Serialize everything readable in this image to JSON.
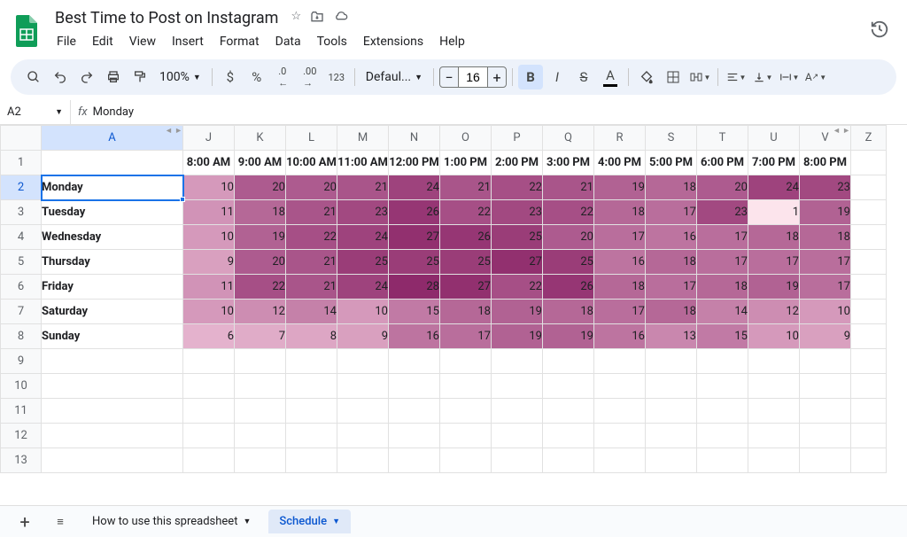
{
  "doc": {
    "title": "Best Time to Post on Instagram"
  },
  "menu": [
    "File",
    "Edit",
    "View",
    "Insert",
    "Format",
    "Data",
    "Tools",
    "Extensions",
    "Help"
  ],
  "toolbar": {
    "zoom": "100%",
    "font": "Defaul...",
    "fontSize": "16"
  },
  "namebox": {
    "cell": "A2",
    "formula": "Monday"
  },
  "columns": {
    "letters": [
      "A",
      "J",
      "K",
      "L",
      "M",
      "N",
      "O",
      "P",
      "Q",
      "R",
      "S",
      "T",
      "U",
      "V",
      "Z"
    ],
    "widths": [
      160,
      58,
      58,
      58,
      58,
      58,
      58,
      58,
      58,
      58,
      58,
      58,
      58,
      58,
      40
    ],
    "day_col_width": 160,
    "val_col_width": 58
  },
  "timeHeaders": [
    "8:00 AM",
    "9:00 AM",
    "10:00 AM",
    "11:00 AM",
    "12:00 PM",
    "1:00 PM",
    "2:00 PM",
    "3:00 PM",
    "4:00 PM",
    "5:00 PM",
    "6:00 PM",
    "7:00 PM",
    "8:00 PM"
  ],
  "days": [
    "Monday",
    "Tuesday",
    "Wednesday",
    "Thursday",
    "Friday",
    "Saturday",
    "Sunday"
  ],
  "heatmap": {
    "values": [
      [
        10,
        20,
        20,
        21,
        24,
        21,
        22,
        21,
        19,
        18,
        20,
        24,
        23
      ],
      [
        11,
        18,
        21,
        23,
        26,
        22,
        23,
        22,
        18,
        17,
        23,
        1,
        19
      ],
      [
        10,
        19,
        22,
        24,
        27,
        26,
        25,
        20,
        17,
        16,
        17,
        18,
        18
      ],
      [
        9,
        20,
        21,
        25,
        25,
        25,
        27,
        25,
        16,
        18,
        17,
        17,
        17
      ],
      [
        11,
        22,
        21,
        24,
        28,
        27,
        22,
        26,
        18,
        17,
        18,
        19,
        17
      ],
      [
        10,
        12,
        14,
        10,
        15,
        18,
        19,
        18,
        17,
        18,
        14,
        12,
        10
      ],
      [
        6,
        7,
        8,
        9,
        16,
        17,
        19,
        19,
        16,
        13,
        15,
        10,
        9
      ]
    ],
    "min": 1,
    "max": 28,
    "colorLow": "#f8d1e3",
    "colorHigh": "#8e2a6b",
    "outlierColor": "#fce4ec"
  },
  "emptyRows": [
    9,
    10,
    11,
    12,
    13
  ],
  "tabs": {
    "inactive": "How to use this spreadsheet",
    "active": "Schedule"
  },
  "selectedCell": {
    "row": 2,
    "col": "A"
  }
}
